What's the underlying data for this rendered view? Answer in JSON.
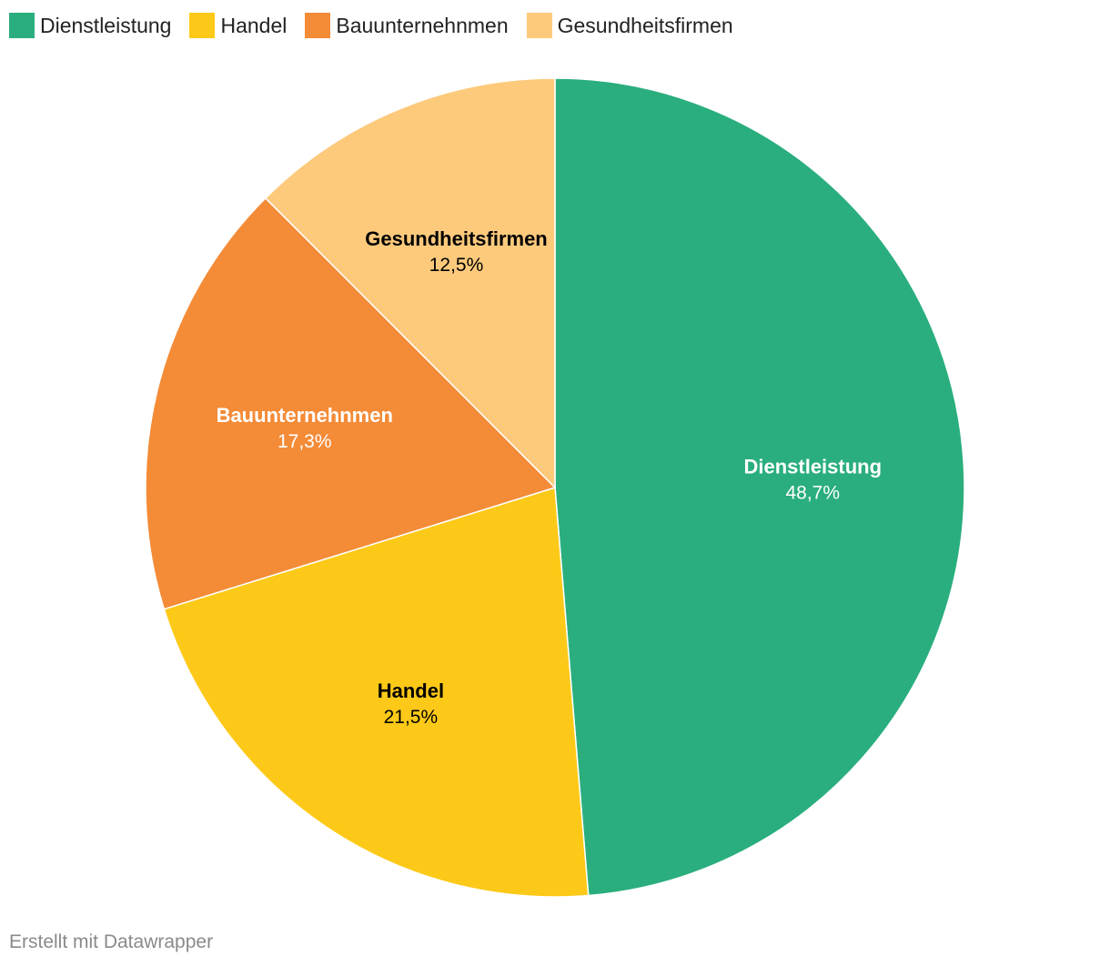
{
  "chart_data": {
    "type": "pie",
    "title": "",
    "categories": [
      "Dienstleistung",
      "Handel",
      "Bauunternehnmen",
      "Gesundheitsfirmen"
    ],
    "values": [
      48.7,
      21.5,
      17.3,
      12.5
    ],
    "value_labels": [
      "48,7%",
      "21,5%",
      "17,3%",
      "12,5%"
    ],
    "colors": [
      "#2aae7e",
      "#fdc919",
      "#f48b37",
      "#fdca7c"
    ],
    "label_colors": [
      "#ffffff",
      "#000000",
      "#ffffff",
      "#000000"
    ],
    "legend_position": "top-left",
    "start_angle_deg": 0,
    "direction": "clockwise"
  },
  "footer": {
    "credit": "Erstellt mit Datawrapper"
  }
}
